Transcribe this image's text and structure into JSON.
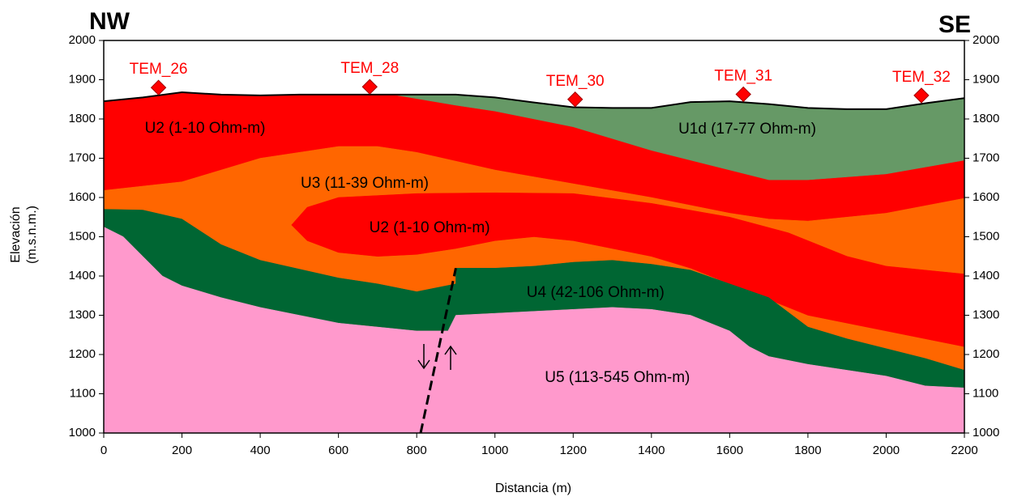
{
  "chart_data": {
    "type": "cross-section",
    "corner_left": "NW",
    "corner_right": "SE",
    "x_label": "Distancia (m)",
    "y_label": [
      "Elevación",
      "(m.s.n.m.)"
    ],
    "xlim": [
      0,
      2200
    ],
    "xticks": [
      0,
      200,
      400,
      600,
      800,
      1000,
      1200,
      1400,
      1600,
      1800,
      2000,
      2200
    ],
    "ylim": [
      1000,
      2000
    ],
    "yticks": [
      1000,
      1100,
      1200,
      1300,
      1400,
      1500,
      1600,
      1700,
      1800,
      1900,
      2000
    ],
    "y2lim": [
      1000,
      2000
    ],
    "y2ticks": [
      1000,
      1100,
      1200,
      1300,
      1400,
      1500,
      1600,
      1700,
      1800,
      1900,
      2000
    ],
    "layers": [
      {
        "name": "U2 (1-10 Ohm-m)",
        "color": "#ff0000",
        "to_bottom": true,
        "outline": true,
        "x": [
          0,
          100,
          200,
          300,
          400,
          500,
          600,
          700,
          800,
          900,
          1000,
          1100,
          1200,
          1300,
          1400,
          1500,
          1600,
          1700,
          1800,
          1900,
          2000,
          2100,
          2200
        ],
        "y": [
          1845,
          1855,
          1868,
          1862,
          1860,
          1862,
          1862,
          1862,
          1862,
          1862,
          1855,
          1842,
          1830,
          1828,
          1828,
          1843,
          1845,
          1838,
          1828,
          1825,
          1825,
          1840,
          1853
        ]
      },
      {
        "name": "U1d (17-77 Ohm-m)",
        "color": "#669966",
        "to_bottom": false,
        "outline": false,
        "x": [
          740,
          800,
          900,
          1000,
          1100,
          1200,
          1300,
          1400,
          1500,
          1600,
          1700,
          1800,
          1900,
          2000,
          2100,
          2200,
          2200,
          2000,
          1800,
          1700,
          1600,
          1400,
          1200,
          1000,
          900
        ],
        "y": [
          1862,
          1862,
          1862,
          1855,
          1842,
          1830,
          1828,
          1828,
          1843,
          1845,
          1838,
          1828,
          1825,
          1825,
          1840,
          1853,
          1695,
          1660,
          1645,
          1645,
          1670,
          1720,
          1780,
          1820,
          1835
        ]
      },
      {
        "name": "U3 (11-39 Ohm-m)",
        "color": "#ff6600",
        "to_bottom": true,
        "outline": false,
        "x": [
          0,
          200,
          400,
          600,
          700,
          800,
          1000,
          1200,
          1400,
          1600,
          1700,
          1800,
          2000,
          2200
        ],
        "y": [
          1618,
          1640,
          1700,
          1730,
          1730,
          1715,
          1670,
          1635,
          1600,
          1560,
          1545,
          1540,
          1560,
          1598
        ]
      },
      {
        "name": "U2 (1-10 Ohm-m)",
        "color": "#ff0000",
        "to_bottom": false,
        "outline": false,
        "x": [
          480,
          520,
          600,
          800,
          1000,
          1200,
          1400,
          1600,
          1750,
          1900,
          2000,
          2200,
          2200,
          2000,
          1800,
          1700,
          1600,
          1500,
          1400,
          1300,
          1200,
          1100,
          1000,
          900,
          800,
          700,
          600,
          520
        ],
        "y": [
          1530,
          1575,
          1600,
          1610,
          1612,
          1610,
          1585,
          1550,
          1510,
          1450,
          1425,
          1405,
          1220,
          1260,
          1300,
          1340,
          1380,
          1420,
          1450,
          1470,
          1490,
          1500,
          1490,
          1470,
          1455,
          1450,
          1460,
          1490
        ]
      },
      {
        "name": "U4 (42-106 Ohm-m)",
        "color": "#006633",
        "to_bottom": true,
        "outline": false,
        "x": [
          0,
          100,
          200,
          300,
          400,
          600,
          700,
          800,
          900,
          900,
          1000,
          1100,
          1200,
          1300,
          1400,
          1500,
          1600,
          1700,
          1800,
          1900,
          2000,
          2100,
          2200
        ],
        "y": [
          1570,
          1568,
          1545,
          1480,
          1440,
          1395,
          1380,
          1360,
          1380,
          1420,
          1420,
          1425,
          1435,
          1440,
          1430,
          1415,
          1380,
          1345,
          1270,
          1240,
          1215,
          1190,
          1160
        ]
      },
      {
        "name": "U5 (113-545 Ohm-m)",
        "color": "#ff99cc",
        "to_bottom": true,
        "outline": false,
        "x": [
          0,
          50,
          100,
          150,
          200,
          300,
          400,
          500,
          600,
          700,
          800,
          880,
          900,
          1000,
          1100,
          1200,
          1300,
          1400,
          1500,
          1600,
          1650,
          1700,
          1800,
          1900,
          2000,
          2100,
          2200
        ],
        "y": [
          1525,
          1500,
          1450,
          1400,
          1375,
          1345,
          1320,
          1300,
          1280,
          1270,
          1260,
          1260,
          1300,
          1305,
          1310,
          1315,
          1320,
          1315,
          1300,
          1260,
          1220,
          1195,
          1175,
          1160,
          1145,
          1120,
          1115
        ]
      }
    ],
    "fault": {
      "x": [
        810,
        900
      ],
      "y": [
        1000,
        1420
      ],
      "color": "#000000"
    },
    "stations": [
      {
        "name": "TEM_26",
        "x": 140,
        "y": 1880
      },
      {
        "name": "TEM_28",
        "x": 680,
        "y": 1882
      },
      {
        "name": "TEM_30",
        "x": 1205,
        "y": 1850
      },
      {
        "name": "TEM_31",
        "x": 1635,
        "y": 1863
      },
      {
        "name": "TEM_32",
        "x": 2090,
        "y": 1860
      }
    ],
    "station_color": "#ff0000"
  }
}
